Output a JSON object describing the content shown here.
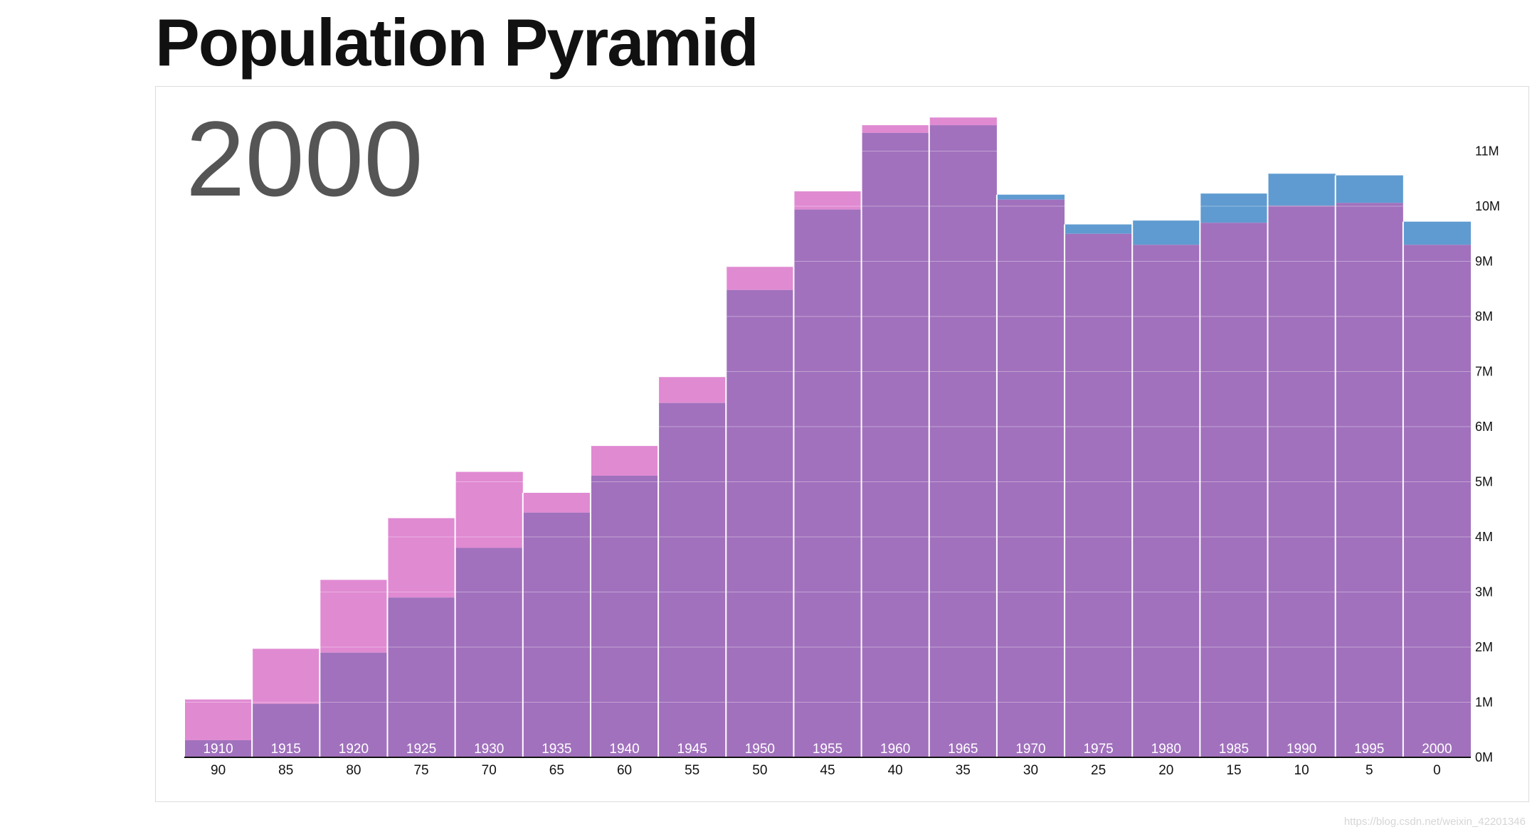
{
  "page": {
    "title": "Population Pyramid",
    "watermark": "https://blog.csdn.net/weixin_42201346"
  },
  "chart_data": {
    "type": "bar",
    "title": "Population Pyramid",
    "year_label": "2000",
    "categories": [
      "1910",
      "1915",
      "1920",
      "1925",
      "1930",
      "1935",
      "1940",
      "1945",
      "1950",
      "1955",
      "1960",
      "1965",
      "1970",
      "1975",
      "1980",
      "1985",
      "1990",
      "1995",
      "2000"
    ],
    "ages": [
      "90",
      "85",
      "80",
      "75",
      "70",
      "65",
      "60",
      "55",
      "50",
      "45",
      "40",
      "35",
      "30",
      "25",
      "20",
      "15",
      "10",
      "5",
      "0"
    ],
    "series": [
      {
        "color": "#e08ad2",
        "values": [
          1.05,
          1.97,
          3.22,
          4.34,
          5.18,
          4.8,
          5.65,
          6.9,
          8.9,
          10.27,
          11.47,
          11.61,
          10.12,
          9.5,
          9.3,
          9.7,
          10.01,
          10.06,
          9.3
        ]
      },
      {
        "color": "#5f9bd0",
        "values": [
          0.31,
          0.97,
          1.9,
          2.9,
          3.8,
          4.44,
          5.11,
          6.43,
          8.48,
          9.94,
          11.33,
          11.47,
          10.21,
          9.67,
          9.74,
          10.23,
          10.59,
          10.56,
          9.72
        ]
      }
    ],
    "overlap_color": "#a171bd",
    "y_ticks": [
      "0M",
      "1M",
      "2M",
      "3M",
      "4M",
      "5M",
      "6M",
      "7M",
      "8M",
      "9M",
      "10M",
      "11M"
    ],
    "ylim": [
      0,
      11.6
    ],
    "y_axis_position": "right",
    "grid": true
  }
}
